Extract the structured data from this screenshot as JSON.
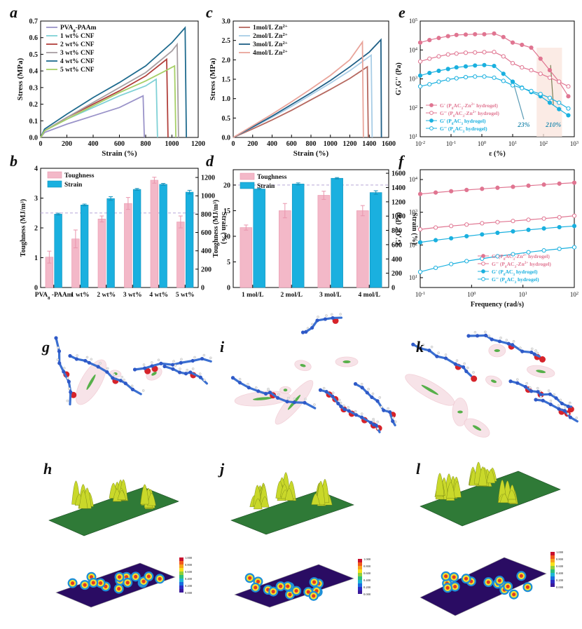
{
  "panel_labels": [
    "a",
    "b",
    "c",
    "d",
    "e",
    "f",
    "g",
    "h",
    "i",
    "j",
    "k",
    "l"
  ],
  "chart_data": [
    {
      "id": "a",
      "type": "line",
      "xlabel": "Strain (%)",
      "ylabel": "Stress (MPa)",
      "xlim": [
        0,
        1200
      ],
      "ylim": [
        0,
        0.7
      ],
      "xticks": [
        0,
        200,
        400,
        600,
        800,
        1000,
        1200
      ],
      "yticks": [
        0.0,
        0.1,
        0.2,
        0.3,
        0.4,
        0.5,
        0.6,
        0.7
      ],
      "legend": "top-left",
      "series": [
        {
          "name": "PVA",
          "name_sub": "8",
          "name_tail": "-PAAm",
          "color": "#9a93c9",
          "x": [
            0,
            30,
            200,
            400,
            600,
            780,
            790
          ],
          "y": [
            0,
            0.03,
            0.08,
            0.13,
            0.18,
            0.25,
            0.0
          ]
        },
        {
          "name": "1 wt% CNF",
          "color": "#7fd1d6",
          "x": [
            0,
            30,
            200,
            400,
            600,
            800,
            880,
            890
          ],
          "y": [
            0,
            0.04,
            0.11,
            0.18,
            0.25,
            0.31,
            0.35,
            0.0
          ]
        },
        {
          "name": "2 wt% CNF",
          "color": "#b2403c",
          "x": [
            0,
            30,
            200,
            400,
            600,
            800,
            960,
            970
          ],
          "y": [
            0,
            0.04,
            0.12,
            0.2,
            0.28,
            0.37,
            0.47,
            0.0
          ]
        },
        {
          "name": "3 wt% CNF",
          "color": "#a79fa3",
          "x": [
            0,
            30,
            200,
            400,
            600,
            800,
            1000,
            1040,
            1050
          ],
          "y": [
            0,
            0.04,
            0.12,
            0.21,
            0.3,
            0.39,
            0.52,
            0.56,
            0.0
          ]
        },
        {
          "name": "4 wt% CNF",
          "color": "#1f6b8e",
          "x": [
            0,
            30,
            200,
            400,
            600,
            800,
            1000,
            1100,
            1110
          ],
          "y": [
            0,
            0.05,
            0.14,
            0.24,
            0.33,
            0.43,
            0.57,
            0.66,
            0.0
          ]
        },
        {
          "name": "5 wt% CNF",
          "color": "#a6cf67",
          "x": [
            0,
            30,
            200,
            400,
            600,
            800,
            950,
            1020,
            1030
          ],
          "y": [
            0,
            0.04,
            0.11,
            0.19,
            0.27,
            0.34,
            0.4,
            0.43,
            0.0
          ]
        }
      ]
    },
    {
      "id": "b",
      "type": "bar",
      "xlabel": "",
      "ylabel": "Toughness (MJ/m³)",
      "y2label": "Strain (%)",
      "ylim": [
        0,
        4
      ],
      "y2lim": [
        0,
        1300
      ],
      "yticks": [
        0,
        1,
        2,
        3,
        4
      ],
      "y2ticks": [
        0,
        200,
        400,
        600,
        800,
        1000,
        1200
      ],
      "dashed_lines": [
        2.5
      ],
      "legend": "top-left",
      "categories": [
        "PVA8-PAAm",
        "1 wt%",
        "2 wt%",
        "3 wt%",
        "4 wt%",
        "5 wt%"
      ],
      "category_labels": [
        {
          "main": "PVA",
          "sub": "8",
          "tail": " -PAAm"
        },
        {
          "main": "1 wt%"
        },
        {
          "main": "2 wt%"
        },
        {
          "main": "3 wt%"
        },
        {
          "main": "4 wt%"
        },
        {
          "main": "5 wt%"
        }
      ],
      "series": [
        {
          "name": "Toughness",
          "axis": "left",
          "color": "#f3b8c8",
          "edge": "#e995ad",
          "values": [
            1.02,
            1.63,
            2.3,
            2.82,
            3.6,
            2.2
          ],
          "errors": [
            0.2,
            0.3,
            0.1,
            0.2,
            0.1,
            0.2
          ]
        },
        {
          "name": "Strain",
          "axis": "right",
          "color": "#1ab0df",
          "edge": "#1291bb",
          "values": [
            800,
            900,
            970,
            1070,
            1125,
            1040
          ],
          "errors": [
            10,
            10,
            20,
            10,
            10,
            20
          ]
        }
      ]
    },
    {
      "id": "c",
      "type": "line",
      "xlabel": "Strain (%)",
      "ylabel": "Stress (MPa)",
      "xlim": [
        0,
        1600
      ],
      "ylim": [
        0,
        3.0
      ],
      "xticks": [
        0,
        200,
        400,
        600,
        800,
        1000,
        1200,
        1400,
        1600
      ],
      "yticks": [
        0.0,
        0.5,
        1.0,
        1.5,
        2.0,
        2.5,
        3.0
      ],
      "legend": "top-left",
      "series": [
        {
          "name": "1mol/L Zn",
          "name_sup": "2+",
          "color": "#b6685f",
          "x": [
            0,
            200,
            400,
            600,
            800,
            1000,
            1200,
            1380,
            1390
          ],
          "y": [
            0,
            0.22,
            0.45,
            0.7,
            0.97,
            1.24,
            1.52,
            1.82,
            0.0
          ]
        },
        {
          "name": "2mol/L Zn",
          "name_sup": "2+",
          "color": "#a8cde6",
          "x": [
            0,
            200,
            400,
            600,
            800,
            1000,
            1200,
            1420,
            1430
          ],
          "y": [
            0,
            0.26,
            0.52,
            0.8,
            1.1,
            1.4,
            1.72,
            2.12,
            0.0
          ]
        },
        {
          "name": "3mol/L Zn",
          "name_sup": "2+",
          "color": "#1f5f86",
          "x": [
            0,
            200,
            400,
            600,
            800,
            1000,
            1200,
            1400,
            1520,
            1525
          ],
          "y": [
            0,
            0.27,
            0.55,
            0.85,
            1.15,
            1.47,
            1.82,
            2.2,
            2.52,
            0.0
          ]
        },
        {
          "name": "4mol/L Zn",
          "name_sup": "2+",
          "color": "#e9a49a",
          "x": [
            0,
            200,
            400,
            600,
            800,
            1000,
            1200,
            1330,
            1340
          ],
          "y": [
            0,
            0.3,
            0.6,
            0.92,
            1.25,
            1.6,
            2.0,
            2.46,
            0.0
          ]
        }
      ]
    },
    {
      "id": "d",
      "type": "bar",
      "xlabel": "",
      "ylabel": "Toughness (MJ/m³)",
      "y2label": "Strain (%)",
      "ylim": [
        0,
        23
      ],
      "y2lim": [
        0,
        1650
      ],
      "yticks": [
        0,
        5,
        10,
        15,
        20
      ],
      "y2ticks": [
        0,
        200,
        400,
        600,
        800,
        1000,
        1200,
        1400,
        1600
      ],
      "dashed_lines": [
        20
      ],
      "legend": "top-left",
      "categories": [
        "1 mol/L",
        "2 mol/L",
        "3 mol/L",
        "4 mol/L"
      ],
      "series": [
        {
          "name": "Toughness",
          "axis": "left",
          "color": "#f3b8c8",
          "edge": "#e995ad",
          "values": [
            11.7,
            15.0,
            18.0,
            15.0
          ],
          "errors": [
            0.5,
            1.4,
            0.8,
            1.0
          ]
        },
        {
          "name": "Strain",
          "axis": "right",
          "color": "#1ab0df",
          "edge": "#1291bb",
          "values": [
            1380,
            1450,
            1530,
            1330
          ],
          "errors": [
            10,
            15,
            10,
            25
          ]
        }
      ]
    },
    {
      "id": "e",
      "type": "scatter",
      "xlabel": "ε (%)",
      "ylabel": "G',G'' (Pa)",
      "xscale": "log",
      "yscale": "log",
      "xlim": [
        0.01,
        1000
      ],
      "ylim": [
        10,
        100000
      ],
      "xticks": [
        0.01,
        0.1,
        1,
        10,
        100,
        1000
      ],
      "xtick_labels": [
        {
          "base": "10",
          "exp": "-2"
        },
        {
          "base": "10",
          "exp": "-1"
        },
        {
          "base": "10",
          "exp": "0"
        },
        {
          "base": "10",
          "exp": "1"
        },
        {
          "base": "10",
          "exp": "2"
        },
        {
          "base": "10",
          "exp": "3"
        }
      ],
      "yticks": [
        10,
        100,
        1000,
        10000,
        100000
      ],
      "ytick_labels": [
        {
          "base": "10",
          "exp": "1"
        },
        {
          "base": "10",
          "exp": "2"
        },
        {
          "base": "10",
          "exp": "3"
        },
        {
          "base": "10",
          "exp": "4"
        },
        {
          "base": "10",
          "exp": "5"
        }
      ],
      "legend": "bottom-left",
      "annotations": [
        "23%",
        "210%"
      ],
      "series": [
        {
          "name": "G' (P",
          "name_rest": "AC",
          "name_tail": "-Zn",
          "name_sup": "2+",
          "name_end": " hydrogel)",
          "color": "#e07591",
          "marker": "filled",
          "x": [
            0.01,
            0.02,
            0.04,
            0.08,
            0.15,
            0.3,
            0.6,
            1.2,
            2.5,
            5,
            10,
            20,
            40,
            80,
            160,
            320,
            640
          ],
          "y": [
            18000,
            22000,
            26000,
            30000,
            33000,
            34000,
            35000,
            35000,
            37000,
            28000,
            18000,
            15000,
            12000,
            5000,
            2000,
            800,
            250
          ]
        },
        {
          "name": "G'' (P",
          "name_rest": "AC",
          "name_tail": "-Zn",
          "name_sup": "2+",
          "name_end": " hydrogel)",
          "color": "#e07591",
          "marker": "open",
          "x": [
            0.01,
            0.02,
            0.04,
            0.08,
            0.15,
            0.3,
            0.6,
            1.2,
            2.5,
            5,
            10,
            20,
            40,
            80,
            160,
            320,
            640
          ],
          "y": [
            4000,
            5000,
            6000,
            7000,
            7500,
            8000,
            8200,
            8400,
            8500,
            6000,
            3500,
            2500,
            2000,
            1500,
            1100,
            800,
            550
          ]
        },
        {
          "name": "G' (P",
          "name_rest": "AC",
          "name_tail": "",
          "name_sup": "",
          "name_end": " hydrogel)",
          "color": "#1ab0df",
          "marker": "filled",
          "x": [
            0.01,
            0.02,
            0.04,
            0.08,
            0.15,
            0.3,
            0.6,
            1.2,
            2.5,
            5,
            10,
            20,
            40,
            80,
            160,
            320,
            640
          ],
          "y": [
            1300,
            1600,
            1900,
            2200,
            2500,
            2700,
            2900,
            3000,
            2800,
            1500,
            800,
            500,
            350,
            250,
            150,
            90,
            55
          ]
        },
        {
          "name": "G'' (P",
          "name_rest": "AC",
          "name_tail": "",
          "name_sup": "",
          "name_end": " hydrogel)",
          "color": "#1ab0df",
          "marker": "open",
          "x": [
            0.01,
            0.02,
            0.04,
            0.08,
            0.15,
            0.3,
            0.6,
            1.2,
            2.5,
            5,
            10,
            20,
            40,
            80,
            160,
            320,
            640
          ],
          "y": [
            550,
            650,
            800,
            950,
            1050,
            1150,
            1200,
            1200,
            1100,
            850,
            600,
            480,
            380,
            300,
            220,
            150,
            95
          ]
        }
      ]
    },
    {
      "id": "f",
      "type": "scatter",
      "xlabel": "Frequency (rad/s)",
      "ylabel": "G',G'' (Pa)",
      "xscale": "log",
      "yscale": "log",
      "xlim": [
        0.1,
        100
      ],
      "ylim": [
        5,
        20000
      ],
      "xticks": [
        0.1,
        1,
        10,
        100
      ],
      "xtick_labels": [
        {
          "base": "10",
          "exp": "-1"
        },
        {
          "base": "10",
          "exp": "0"
        },
        {
          "base": "10",
          "exp": "1"
        },
        {
          "base": "10",
          "exp": "2"
        }
      ],
      "yticks": [
        10,
        100,
        1000,
        10000
      ],
      "ytick_labels": [
        {
          "base": "10",
          "exp": "1"
        },
        {
          "base": "10",
          "exp": "2"
        },
        {
          "base": "10",
          "exp": "3"
        },
        {
          "base": "10",
          "exp": "4"
        }
      ],
      "legend": "bottom-right",
      "series": [
        {
          "name": "G' (P",
          "name_rest": "AC",
          "name_tail": "-Zn",
          "name_sup": "2+",
          "name_end": " hydrogel)",
          "color": "#e07591",
          "marker": "filled",
          "x": [
            0.1,
            0.2,
            0.4,
            0.8,
            1.6,
            3.2,
            6.4,
            12.8,
            25.6,
            51.2,
            100
          ],
          "y": [
            3600,
            4000,
            4400,
            4800,
            5200,
            5600,
            6000,
            6500,
            7000,
            7500,
            8000
          ]
        },
        {
          "name": "G'' (P",
          "name_rest": "AC",
          "name_tail": "-Zn",
          "name_sup": "2+",
          "name_end": " hydrogel)",
          "color": "#e07591",
          "marker": "open",
          "x": [
            0.1,
            0.2,
            0.4,
            0.8,
            1.6,
            3.2,
            6.4,
            12.8,
            25.6,
            51.2,
            100
          ],
          "y": [
            300,
            340,
            380,
            420,
            460,
            500,
            540,
            590,
            640,
            700,
            780
          ]
        },
        {
          "name": "G' (P",
          "name_rest": "AC",
          "name_tail": "",
          "name_sup": "",
          "name_end": " hydrogel)",
          "color": "#1ab0df",
          "marker": "filled",
          "x": [
            0.1,
            0.2,
            0.4,
            0.8,
            1.6,
            3.2,
            6.4,
            12.8,
            25.6,
            51.2,
            100
          ],
          "y": [
            120,
            140,
            160,
            185,
            210,
            235,
            260,
            290,
            320,
            350,
            380
          ]
        },
        {
          "name": "G'' (P",
          "name_rest": "AC",
          "name_tail": "",
          "name_sup": "",
          "name_end": " hydrogel)",
          "color": "#1ab0df",
          "marker": "open",
          "x": [
            0.1,
            0.2,
            0.4,
            0.8,
            1.6,
            3.2,
            6.4,
            12.8,
            25.6,
            51.2,
            100
          ],
          "y": [
            15,
            20,
            26,
            32,
            38,
            45,
            52,
            60,
            68,
            76,
            85
          ]
        }
      ]
    }
  ],
  "molecular_panels": [
    {
      "id": "g"
    },
    {
      "id": "i"
    },
    {
      "id": "k"
    }
  ],
  "surface_panels": [
    {
      "id": "h",
      "colorbar_ticks": [
        "1.000",
        "0.900",
        "0.800",
        "0.700",
        "0.600",
        "0.500",
        "0.400",
        "0.300",
        "0.200",
        "0.100",
        "0.000"
      ]
    },
    {
      "id": "j",
      "colorbar_ticks": [
        "1.000",
        "0.900",
        "0.800",
        "0.700",
        "0.600",
        "0.500",
        "0.400",
        "0.300",
        "0.200",
        "0.100",
        "0.000"
      ]
    },
    {
      "id": "l",
      "colorbar_ticks": [
        "1.000",
        "0.900",
        "0.800",
        "0.700",
        "0.600",
        "0.500",
        "0.400",
        "0.300",
        "0.200",
        "0.100",
        "0.000"
      ]
    }
  ],
  "colors": {
    "pink": "#f3b8c8",
    "cyan": "#1ab0df",
    "blob": "#f6dfe4",
    "atom_c": "#2f59c7",
    "atom_o": "#d6232a",
    "atom_h": "#e8e8e8",
    "surface": "#2f7a37",
    "peak": "#c9d82a",
    "map_bg": "#2a0c63"
  }
}
